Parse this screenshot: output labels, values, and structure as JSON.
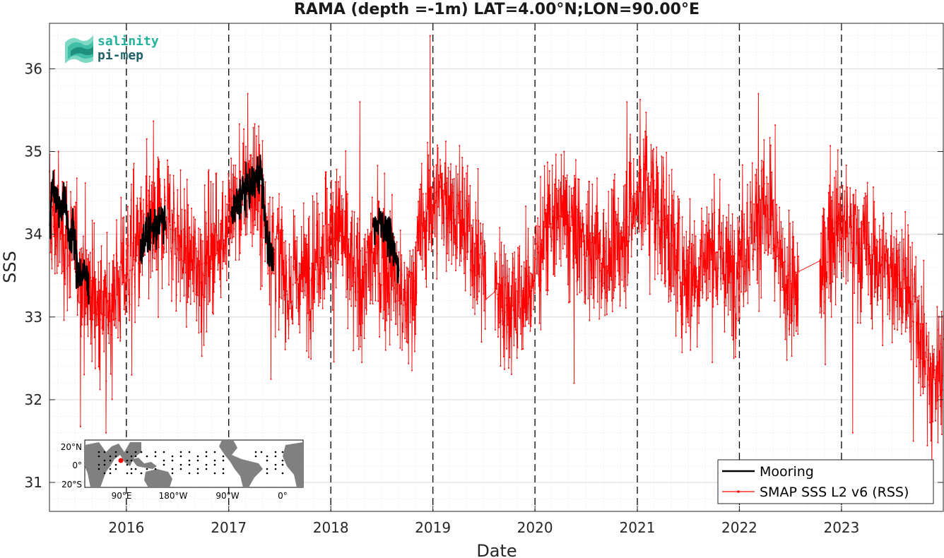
{
  "chart_data": {
    "type": "line",
    "title": "RAMA (depth =-1m) LAT=4.00°N;LON=90.00°E",
    "xlabel": "Date",
    "ylabel": "SSS",
    "xlim": [
      "2015-04-01",
      "2023-12-31"
    ],
    "ylim": [
      30.65,
      36.55
    ],
    "y_ticks": [
      31,
      32,
      33,
      34,
      35,
      36
    ],
    "x_ticks": [
      "2016",
      "2017",
      "2018",
      "2019",
      "2020",
      "2021",
      "2022",
      "2023"
    ],
    "year_boundaries": [
      "2016-01-01",
      "2017-01-01",
      "2018-01-01",
      "2019-01-01",
      "2020-01-01",
      "2021-01-01",
      "2022-01-01",
      "2023-01-01"
    ],
    "grid": true,
    "legend_position": "bottom-right",
    "colors": {
      "mooring": "#000000",
      "smap": "#ff0000",
      "grid": "#d9d9d9"
    },
    "series": [
      {
        "name": "Mooring",
        "type": "line",
        "segments": [
          {
            "start": "2015-04-02",
            "end": "2015-08-20",
            "anchors": [
              [
                "2015-04-02",
                34.1
              ],
              [
                "2015-04-12",
                34.65
              ],
              [
                "2015-04-25",
                34.45
              ],
              [
                "2015-05-10",
                34.3
              ],
              [
                "2015-05-25",
                34.45
              ],
              [
                "2015-06-10",
                34.0
              ],
              [
                "2015-06-25",
                34.0
              ],
              [
                "2015-07-10",
                33.6
              ],
              [
                "2015-07-25",
                33.5
              ],
              [
                "2015-08-10",
                33.5
              ],
              [
                "2015-08-20",
                33.4
              ]
            ]
          },
          {
            "start": "2016-02-20",
            "end": "2016-05-20",
            "anchors": [
              [
                "2016-02-20",
                33.8
              ],
              [
                "2016-03-15",
                34.0
              ],
              [
                "2016-04-15",
                34.1
              ],
              [
                "2016-05-20",
                34.2
              ]
            ]
          },
          {
            "start": "2017-01-10",
            "end": "2017-06-10",
            "anchors": [
              [
                "2017-01-10",
                34.2
              ],
              [
                "2017-02-20",
                34.5
              ],
              [
                "2017-04-01",
                34.6
              ],
              [
                "2017-04-25",
                34.8
              ],
              [
                "2017-05-20",
                33.9
              ],
              [
                "2017-06-10",
                33.6
              ]
            ]
          },
          {
            "start": "2018-06-01",
            "end": "2018-09-01",
            "anchors": [
              [
                "2018-06-01",
                34.1
              ],
              [
                "2018-07-01",
                34.2
              ],
              [
                "2018-08-01",
                33.9
              ],
              [
                "2018-09-01",
                33.6
              ]
            ]
          }
        ]
      },
      {
        "name": "SMAP SSS L2 v6 (RSS)",
        "type": "line-with-markers",
        "gaps": [
          {
            "from": "2019-07-10",
            "to": "2019-08-10"
          },
          {
            "from": "2022-08-01",
            "to": "2022-10-15"
          }
        ],
        "anchors": [
          [
            "2015-04-01",
            34.2
          ],
          [
            "2015-06-01",
            34.0
          ],
          [
            "2015-08-01",
            33.5
          ],
          [
            "2015-10-15",
            33.0
          ],
          [
            "2015-12-01",
            33.4
          ],
          [
            "2016-02-01",
            33.8
          ],
          [
            "2016-04-01",
            34.0
          ],
          [
            "2016-06-01",
            34.2
          ],
          [
            "2016-08-01",
            33.7
          ],
          [
            "2016-10-01",
            33.6
          ],
          [
            "2016-12-01",
            34.0
          ],
          [
            "2017-02-01",
            34.4
          ],
          [
            "2017-04-01",
            34.6
          ],
          [
            "2017-06-01",
            34.0
          ],
          [
            "2017-08-01",
            33.4
          ],
          [
            "2017-10-01",
            33.5
          ],
          [
            "2017-12-01",
            33.9
          ],
          [
            "2018-02-01",
            34.1
          ],
          [
            "2018-04-01",
            33.4
          ],
          [
            "2018-06-01",
            33.7
          ],
          [
            "2018-08-01",
            33.6
          ],
          [
            "2018-10-01",
            33.0
          ],
          [
            "2018-12-01",
            34.2
          ],
          [
            "2019-02-01",
            34.5
          ],
          [
            "2019-04-01",
            34.2
          ],
          [
            "2019-06-01",
            33.8
          ],
          [
            "2019-08-01",
            33.4
          ],
          [
            "2019-10-01",
            33.2
          ],
          [
            "2019-12-01",
            33.2
          ],
          [
            "2020-02-01",
            34.0
          ],
          [
            "2020-04-01",
            34.2
          ],
          [
            "2020-06-01",
            34.0
          ],
          [
            "2020-08-01",
            33.8
          ],
          [
            "2020-10-01",
            33.6
          ],
          [
            "2020-12-01",
            34.2
          ],
          [
            "2021-02-01",
            34.6
          ],
          [
            "2021-04-01",
            34.2
          ],
          [
            "2021-06-01",
            33.6
          ],
          [
            "2021-08-01",
            33.6
          ],
          [
            "2021-10-01",
            33.8
          ],
          [
            "2021-12-01",
            33.5
          ],
          [
            "2022-02-01",
            34.0
          ],
          [
            "2022-04-01",
            34.3
          ],
          [
            "2022-06-01",
            33.5
          ],
          [
            "2022-08-01",
            33.2
          ],
          [
            "2022-10-15",
            33.4
          ],
          [
            "2022-12-01",
            34.1
          ],
          [
            "2023-02-01",
            34.0
          ],
          [
            "2023-04-01",
            33.8
          ],
          [
            "2023-06-01",
            33.6
          ],
          [
            "2023-08-01",
            33.5
          ],
          [
            "2023-10-01",
            33.0
          ],
          [
            "2023-11-15",
            32.2
          ],
          [
            "2023-12-31",
            32.5
          ]
        ],
        "noise_sd": 0.42,
        "spikes": [
          [
            "2015-10-20",
            31.6
          ],
          [
            "2018-12-22",
            36.4
          ],
          [
            "2022-03-10",
            35.7
          ],
          [
            "2023-02-10",
            31.6
          ],
          [
            "2023-11-20",
            31.0
          ],
          [
            "2020-11-25",
            35.6
          ],
          [
            "2017-03-10",
            35.7
          ],
          [
            "2018-04-15",
            35.6
          ],
          [
            "2016-01-20",
            32.3
          ],
          [
            "2020-05-20",
            32.2
          ],
          [
            "2021-07-10",
            32.6
          ],
          [
            "2023-09-15",
            31.5
          ]
        ]
      }
    ]
  },
  "inset_map": {
    "lat_labels": [
      "20°N",
      "0°",
      "20°S"
    ],
    "lon_labels": [
      "90°E",
      "180°W",
      "90°W",
      "0°"
    ]
  },
  "logo": {
    "line1": "salinity",
    "line2": "pi-mep"
  }
}
